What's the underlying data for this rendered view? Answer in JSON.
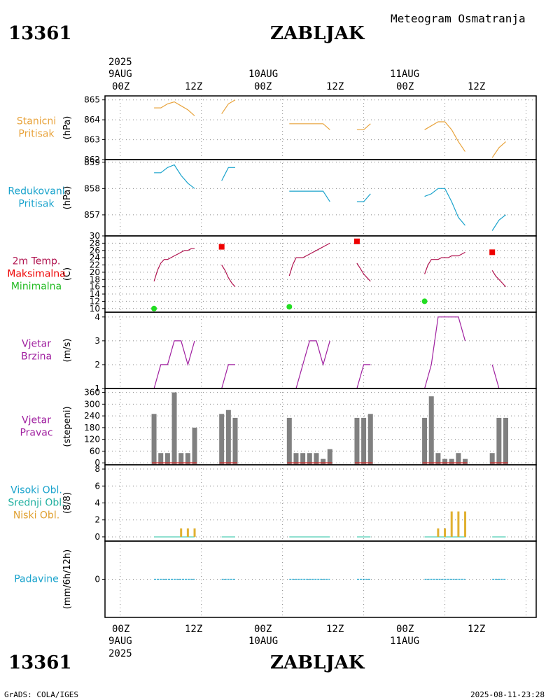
{
  "header": {
    "station_id": "13361",
    "station_name": "ZABLJAK",
    "subtitle": "Meteogram Osmatranja"
  },
  "time_axis": {
    "top": {
      "year": "2025",
      "day_labels": [
        "9AUG",
        "10AUG",
        "11AUG"
      ],
      "hour_labels": [
        "00Z",
        "12Z",
        "00Z",
        "12Z",
        "00Z",
        "12Z"
      ]
    },
    "bottom": {
      "hour_labels": [
        "00Z",
        "12Z",
        "00Z",
        "12Z",
        "00Z",
        "12Z"
      ],
      "day_labels": [
        "9AUG",
        "10AUG",
        "11AUG"
      ],
      "year": "2025"
    }
  },
  "footer": {
    "left": "GrADS: COLA/IGES",
    "right": "2025-08-11-23:28"
  },
  "colors": {
    "pressure": "#e8a33c",
    "reduced": "#1aa3cc",
    "tmax_line": "#b0134f",
    "tmax_mark": "#ee0000",
    "tmin_mark": "#22dd22",
    "wind": "#a020a0",
    "dir_bar": "#808080",
    "dir_base": "#cc2222",
    "cloud_low": "#e0b030",
    "cloud_mid": "#20c0a0",
    "precip": "#1aa3cc"
  },
  "panels": [
    {
      "id": "station_pressure",
      "labels": [
        "Stanicni",
        "Pritisak"
      ],
      "label_colors": [
        "#e8a33c",
        "#e8a33c"
      ],
      "unit": "(hPa)",
      "ticks": [
        "865",
        "864",
        "863",
        "862"
      ]
    },
    {
      "id": "reduced_pressure",
      "labels": [
        "Redukovani",
        "Pritisak"
      ],
      "label_colors": [
        "#1aa3cc",
        "#1aa3cc"
      ],
      "unit": "(hPa)",
      "ticks": [
        "859",
        "858",
        "857"
      ]
    },
    {
      "id": "temperature",
      "labels": [
        "2m Temp.",
        "Maksimalna",
        "Minimalna"
      ],
      "label_colors": [
        "#b0134f",
        "#ee0000",
        "#22bb22"
      ],
      "unit": "(C)",
      "ticks": [
        "30",
        "28",
        "26",
        "24",
        "22",
        "20",
        "18",
        "16",
        "14",
        "12",
        "10"
      ]
    },
    {
      "id": "wind_speed",
      "labels": [
        "Vjetar",
        "Brzina"
      ],
      "label_colors": [
        "#a020a0",
        "#a020a0"
      ],
      "unit": "(m/s)",
      "ticks": [
        "4",
        "3",
        "2",
        "1"
      ]
    },
    {
      "id": "wind_direction",
      "labels": [
        "Vjetar",
        "Pravac"
      ],
      "label_colors": [
        "#a020a0",
        "#a020a0"
      ],
      "unit": "(stepeni)",
      "ticks": [
        "360",
        "300",
        "240",
        "180",
        "120",
        "60",
        "0"
      ]
    },
    {
      "id": "clouds",
      "labels": [
        "Visoki Obl.",
        "Srednji Obl.",
        "Niski Obl."
      ],
      "label_colors": [
        "#1aa3cc",
        "#20b0a0",
        "#e0a030"
      ],
      "unit": "(8/8)",
      "ticks": [
        "8",
        "6",
        "4",
        "2",
        "0"
      ]
    },
    {
      "id": "precipitation",
      "labels": [
        "Padavine"
      ],
      "label_colors": [
        "#1aa3cc"
      ],
      "unit": "(mm/6h/12h)",
      "ticks": [
        "0"
      ]
    }
  ],
  "chart_data": [
    {
      "type": "line",
      "title": "Stanicni Pritisak",
      "ylabel": "(hPa)",
      "ylim": [
        862,
        865.2
      ],
      "x_units": "hours since 2025-08-09 00Z",
      "segments": [
        {
          "x": [
            5,
            6,
            7,
            8,
            9,
            10,
            11
          ],
          "y": [
            864.6,
            864.6,
            864.8,
            864.9,
            864.7,
            864.5,
            864.2
          ]
        },
        {
          "x": [
            15,
            16,
            17
          ],
          "y": [
            864.3,
            864.8,
            865.0
          ]
        },
        {
          "x": [
            25,
            26,
            27,
            28,
            29,
            30,
            31
          ],
          "y": [
            863.8,
            863.8,
            863.8,
            863.8,
            863.8,
            863.8,
            863.5
          ]
        },
        {
          "x": [
            35,
            36,
            37
          ],
          "y": [
            863.5,
            863.5,
            863.8
          ]
        },
        {
          "x": [
            45,
            46,
            47,
            48,
            49,
            50,
            51
          ],
          "y": [
            863.5,
            863.7,
            863.9,
            863.9,
            863.5,
            862.9,
            862.4
          ]
        },
        {
          "x": [
            55,
            56,
            57
          ],
          "y": [
            862.1,
            862.6,
            862.9
          ]
        }
      ]
    },
    {
      "type": "line",
      "title": "Redukovani Pritisak",
      "ylabel": "(hPa)",
      "ylim": [
        856.2,
        859.1
      ],
      "x_units": "hours since 2025-08-09 00Z",
      "segments": [
        {
          "x": [
            5,
            6,
            7,
            8,
            9,
            10,
            11
          ],
          "y": [
            858.6,
            858.6,
            858.8,
            858.9,
            858.5,
            858.2,
            858.0
          ]
        },
        {
          "x": [
            15,
            16,
            17
          ],
          "y": [
            858.3,
            858.8,
            858.8
          ]
        },
        {
          "x": [
            25,
            26,
            27,
            28,
            29,
            30,
            31
          ],
          "y": [
            857.9,
            857.9,
            857.9,
            857.9,
            857.9,
            857.9,
            857.5
          ]
        },
        {
          "x": [
            35,
            36,
            37
          ],
          "y": [
            857.5,
            857.5,
            857.8
          ]
        },
        {
          "x": [
            45,
            46,
            47,
            48,
            49,
            50,
            51
          ],
          "y": [
            857.7,
            857.8,
            858.0,
            858.0,
            857.5,
            856.9,
            856.6
          ]
        },
        {
          "x": [
            55,
            56,
            57
          ],
          "y": [
            856.4,
            856.8,
            857.0
          ]
        }
      ]
    },
    {
      "type": "line",
      "title": "2m Temp. / Maksimalna / Minimalna",
      "ylabel": "(C)",
      "ylim": [
        9,
        30
      ],
      "x_units": "hours since 2025-08-09 00Z",
      "temp_segments": [
        {
          "x": [
            5,
            5.5,
            6,
            6.5,
            7,
            7.5,
            8,
            8.5,
            9,
            9.5,
            10,
            10.5,
            11
          ],
          "y": [
            17.5,
            20.5,
            22.5,
            23.5,
            23.5,
            24,
            24.5,
            25,
            25.5,
            26,
            26,
            26.5,
            26.5
          ]
        },
        {
          "x": [
            15,
            15.5,
            16,
            16.5,
            17
          ],
          "y": [
            22,
            20.5,
            18.5,
            17,
            16
          ]
        },
        {
          "x": [
            25,
            25.5,
            26,
            26.5,
            27,
            27.5,
            28,
            28.5,
            29,
            29.5,
            30,
            30.5,
            31
          ],
          "y": [
            19,
            22,
            24,
            24,
            24,
            24.5,
            25,
            25.5,
            26,
            26.5,
            27,
            27.5,
            28
          ]
        },
        {
          "x": [
            35,
            35.5,
            36,
            36.5,
            37
          ],
          "y": [
            22.5,
            21,
            19.5,
            18.5,
            17.5
          ]
        },
        {
          "x": [
            45,
            45.5,
            46,
            46.5,
            47,
            47.5,
            48,
            48.5,
            49,
            49.5,
            50,
            50.5,
            51
          ],
          "y": [
            19.5,
            22,
            23.5,
            23.5,
            23.5,
            24,
            24,
            24,
            24.5,
            24.5,
            24.5,
            25,
            25.5
          ]
        },
        {
          "x": [
            55,
            55.5,
            56,
            56.5,
            57
          ],
          "y": [
            20.5,
            19,
            18,
            17,
            16
          ]
        }
      ],
      "tmax": [
        {
          "x": 15,
          "y": 27
        },
        {
          "x": 35,
          "y": 28.5
        },
        {
          "x": 55,
          "y": 25.5
        }
      ],
      "tmin": [
        {
          "x": 5,
          "y": 10
        },
        {
          "x": 25,
          "y": 10.5
        },
        {
          "x": 45,
          "y": 12
        }
      ]
    },
    {
      "type": "line",
      "title": "Vjetar Brzina",
      "ylabel": "(m/s)",
      "ylim": [
        1,
        4.2
      ],
      "x_units": "hours since 2025-08-09 00Z",
      "segments": [
        {
          "x": [
            5,
            6,
            7,
            8,
            9,
            10,
            11
          ],
          "y": [
            1,
            2,
            2,
            3,
            3,
            2,
            3
          ]
        },
        {
          "x": [
            15,
            16,
            17
          ],
          "y": [
            1,
            2,
            2
          ]
        },
        {
          "x": [
            25,
            26,
            27,
            28,
            29,
            30,
            31
          ],
          "y": [
            1,
            1,
            2,
            3,
            3,
            2,
            3
          ]
        },
        {
          "x": [
            35,
            36,
            37
          ],
          "y": [
            1,
            2,
            2
          ]
        },
        {
          "x": [
            45,
            46,
            47,
            48,
            49,
            50,
            51
          ],
          "y": [
            1,
            2,
            4,
            4,
            4,
            4,
            3
          ]
        },
        {
          "x": [
            55,
            56,
            57
          ],
          "y": [
            2,
            1,
            1
          ]
        }
      ]
    },
    {
      "type": "bar",
      "title": "Vjetar Pravac",
      "ylabel": "(stepeni)",
      "ylim": [
        -10,
        380
      ],
      "x_units": "hours since 2025-08-09 00Z",
      "x": [
        5,
        6,
        7,
        8,
        9,
        10,
        11,
        15,
        16,
        17,
        25,
        26,
        27,
        28,
        29,
        30,
        31,
        35,
        36,
        37,
        45,
        46,
        47,
        48,
        49,
        50,
        51,
        55,
        56,
        57
      ],
      "values": [
        250,
        50,
        50,
        360,
        50,
        50,
        180,
        250,
        270,
        230,
        230,
        50,
        50,
        50,
        50,
        20,
        70,
        230,
        230,
        250,
        230,
        340,
        50,
        20,
        20,
        50,
        20,
        50,
        230,
        230
      ]
    },
    {
      "type": "bar",
      "title": "Visoki / Srednji / Niski Obl.",
      "ylabel": "(8/8)",
      "ylim": [
        -0.5,
        8.5
      ],
      "x_units": "hours since 2025-08-09 00Z",
      "low_x": [
        9,
        10,
        11,
        47,
        48,
        49,
        50,
        51
      ],
      "low_values": [
        1,
        1,
        1,
        1,
        1,
        3,
        3,
        3
      ],
      "baseline_segments": [
        [
          5,
          11
        ],
        [
          15,
          17
        ],
        [
          25,
          31
        ],
        [
          35,
          37
        ],
        [
          45,
          51
        ],
        [
          55,
          57
        ]
      ]
    },
    {
      "type": "line",
      "title": "Padavine",
      "ylabel": "(mm/6h/12h)",
      "ylim": [
        -1,
        1
      ],
      "x_units": "hours since 2025-08-09 00Z",
      "zero_segments": [
        [
          5,
          11
        ],
        [
          15,
          17
        ],
        [
          25,
          31
        ],
        [
          35,
          37
        ],
        [
          45,
          51
        ],
        [
          55,
          57
        ]
      ]
    }
  ]
}
